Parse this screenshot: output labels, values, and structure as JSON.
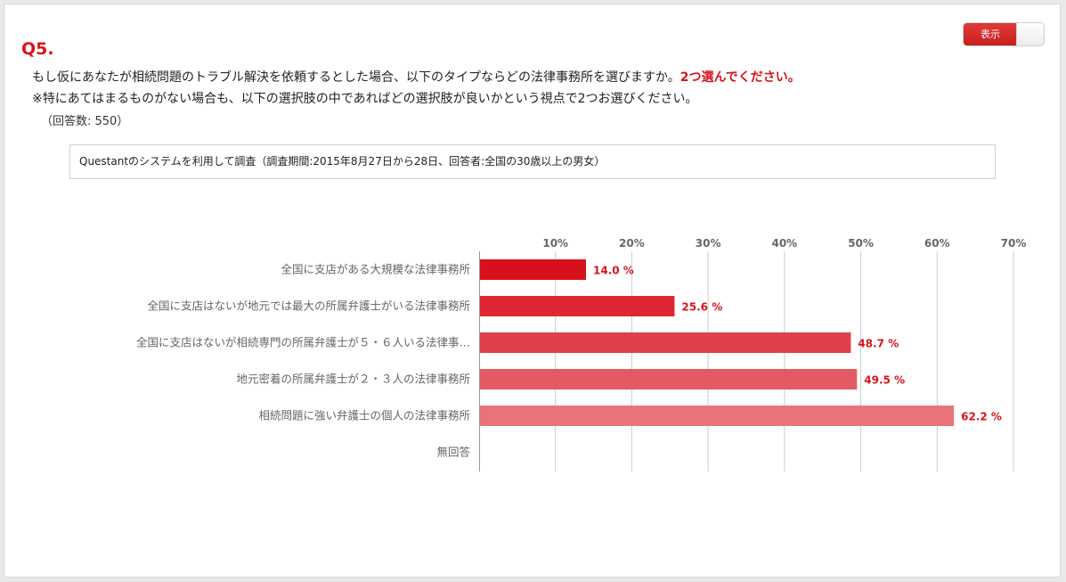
{
  "toggle": {
    "label": "表示"
  },
  "question": {
    "number": "Q5.",
    "line1_text": "もし仮にあなたが相続問題のトラブル解決を依頼するとした場合、以下のタイプならどの法律事務所を選びますか。",
    "line1_emphasis": "2つ選んでください。",
    "line2_text": "※特にあてはまるものがない場合も、以下の選択肢の中であればどの選択肢が良いかという視点で2つお選びください。",
    "response_count": "（回答数: 550）"
  },
  "survey_note": "Questantのシステムを利用して調査（調査期間:2015年8月27日から28日、回答者:全国の30歳以上の男女）",
  "chart_data": {
    "type": "bar",
    "orientation": "horizontal",
    "categories": [
      "全国に支店がある大規模な法律事務所",
      "全国に支店はないが地元では最大の所属弁護士がいる法律事務所",
      "全国に支店はないが相続専門の所属弁護士が５・６人いる法律事…",
      "地元密着の所属弁護士が２・３人の法律事務所",
      "相続問題に強い弁護士の個人の法律事務所",
      "無回答"
    ],
    "values": [
      14.0,
      25.6,
      48.7,
      49.5,
      62.2,
      null
    ],
    "value_labels": [
      "14.0 %",
      "25.6 %",
      "48.7 %",
      "49.5 %",
      "62.2 %",
      ""
    ],
    "bar_colors": [
      "#d7111b",
      "#dd2631",
      "#e0404a",
      "#e45a62",
      "#e9737a",
      "#e9737a"
    ],
    "label_color": "#d7151b",
    "xlim": [
      0,
      70
    ],
    "x_ticks": [
      10,
      20,
      30,
      40,
      50,
      60,
      70
    ],
    "x_tick_labels": [
      "10%",
      "20%",
      "30%",
      "40%",
      "50%",
      "60%",
      "70%"
    ],
    "axis_position": "top",
    "grid": true,
    "grid_color": "#cccccc"
  }
}
